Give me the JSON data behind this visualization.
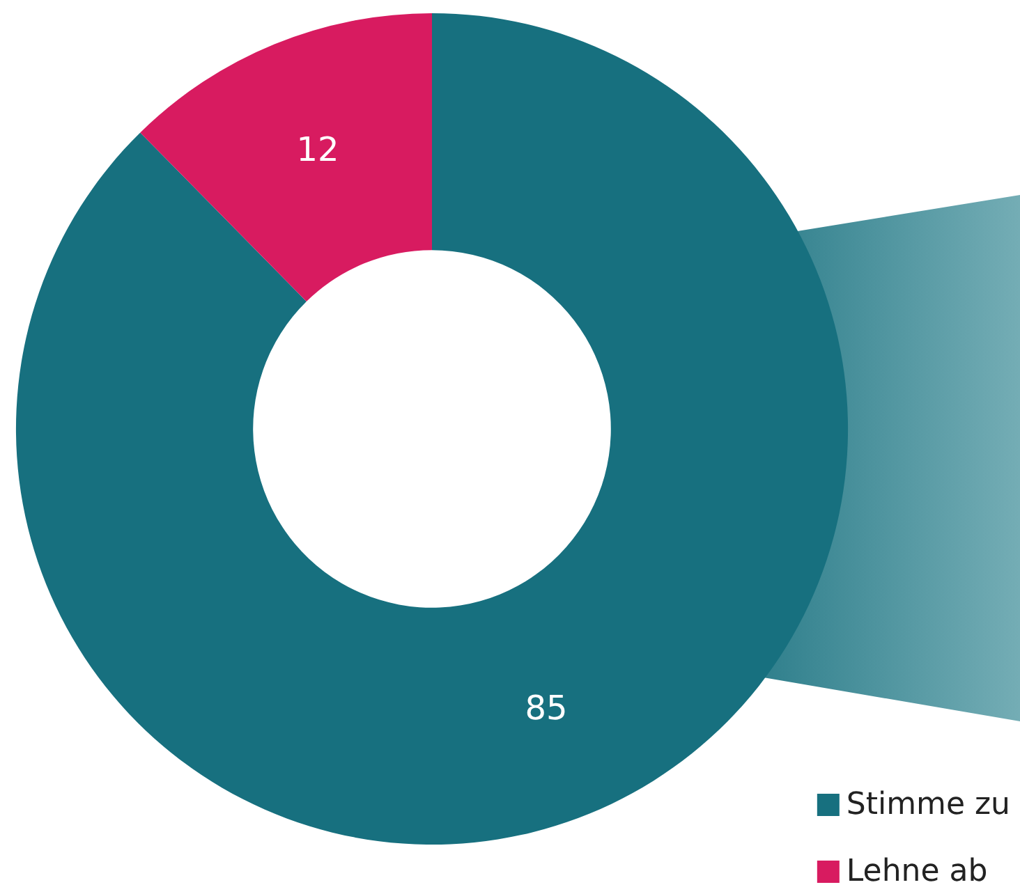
{
  "chart_data": {
    "type": "donut",
    "categories": [
      "Stimme zu",
      "Lehne ab"
    ],
    "values": [
      85,
      12
    ],
    "colors": [
      "#17707f",
      "#d81b60"
    ],
    "data_labels": true,
    "legend": "bottom right"
  }
}
